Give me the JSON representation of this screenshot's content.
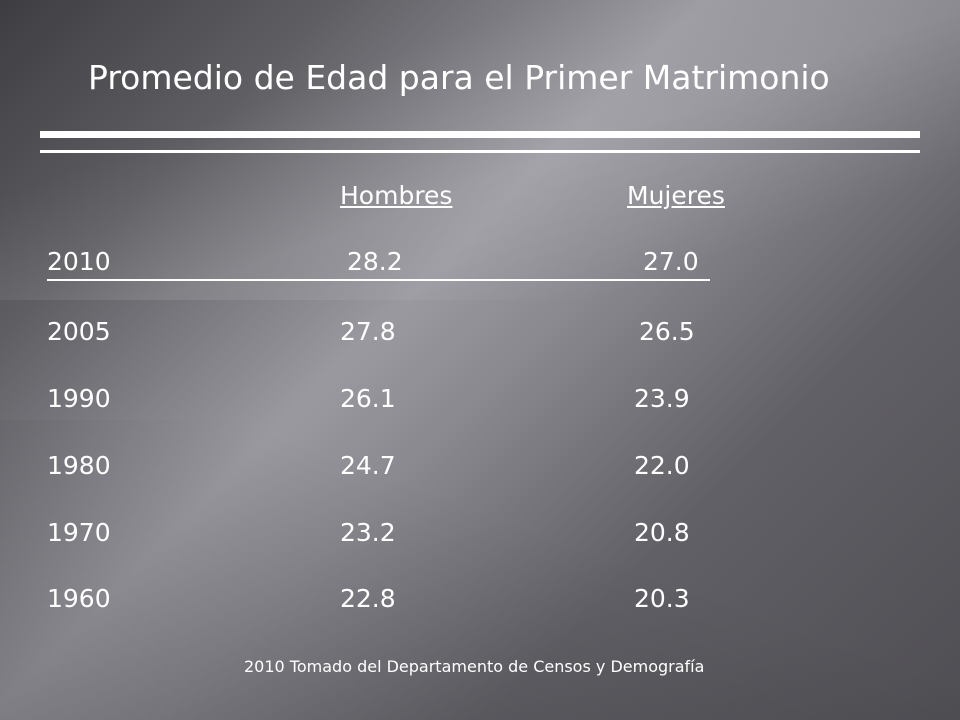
{
  "slide": {
    "title": "Promedio de Edad para el Primer Matrimonio",
    "headers": {
      "hombres": "Hombres",
      "mujeres": "Mujeres"
    },
    "rows": [
      {
        "year": "2010",
        "hombres": "28.2",
        "mujeres": "27.0"
      },
      {
        "year": "2005",
        "hombres": "27.8",
        "mujeres": "26.5"
      },
      {
        "year": "1990",
        "hombres": "26.1",
        "mujeres": "23.9"
      },
      {
        "year": "1980",
        "hombres": "24.7",
        "mujeres": "22.0"
      },
      {
        "year": "1970",
        "hombres": "23.2",
        "mujeres": "20.8"
      },
      {
        "year": "1960",
        "hombres": "22.8",
        "mujeres": "20.3"
      }
    ],
    "source": "2010 Tomado del Departamento de Censos y Demografía"
  },
  "colors": {
    "text": "#ffffff",
    "background": "#5e5d62"
  }
}
